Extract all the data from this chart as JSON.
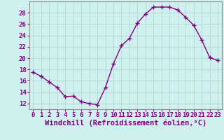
{
  "x": [
    0,
    1,
    2,
    3,
    4,
    5,
    6,
    7,
    8,
    9,
    10,
    11,
    12,
    13,
    14,
    15,
    16,
    17,
    18,
    19,
    20,
    21,
    22,
    23
  ],
  "y": [
    17.5,
    16.8,
    15.8,
    14.8,
    13.2,
    13.3,
    12.3,
    12.0,
    11.8,
    14.8,
    19.0,
    22.2,
    23.5,
    26.2,
    27.8,
    29.0,
    29.0,
    29.0,
    28.5,
    27.2,
    25.8,
    23.2,
    20.1,
    19.6
  ],
  "line_color": "#800080",
  "marker": "+",
  "marker_size": 4,
  "marker_linewidth": 1.0,
  "line_width": 1.0,
  "background_color": "#d0f0f0",
  "grid_color": "#b0d8d8",
  "xlabel": "Windchill (Refroidissement éolien,°C)",
  "xlabel_fontsize": 7.5,
  "ylim": [
    11,
    30
  ],
  "xlim": [
    -0.5,
    23.5
  ],
  "yticks": [
    12,
    14,
    16,
    18,
    20,
    22,
    24,
    26,
    28
  ],
  "xticks": [
    0,
    1,
    2,
    3,
    4,
    5,
    6,
    7,
    8,
    9,
    10,
    11,
    12,
    13,
    14,
    15,
    16,
    17,
    18,
    19,
    20,
    21,
    22,
    23
  ],
  "tick_fontsize": 6.5,
  "spine_color": "#909090"
}
